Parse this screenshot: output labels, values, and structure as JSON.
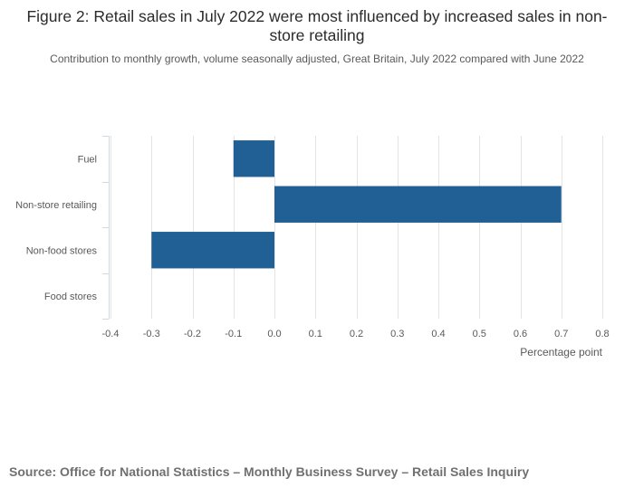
{
  "chart_data": {
    "type": "bar",
    "orientation": "horizontal",
    "title": "Figure 2: Retail sales in July 2022 were most influenced by increased sales in non-store retailing",
    "subtitle": "Contribution to monthly growth, volume seasonally adjusted, Great Britain, July 2022 compared with June 2022",
    "categories": [
      "Fuel",
      "Non-store retailing",
      "Non-food stores",
      "Food stores"
    ],
    "values": [
      -0.1,
      0.7,
      -0.3,
      0.0
    ],
    "xlabel": "Percentage point",
    "ylabel": "",
    "xlim": [
      -0.4,
      0.8
    ],
    "xticks": [
      "-0.4",
      "-0.3",
      "-0.2",
      "-0.1",
      "0.0",
      "0.1",
      "0.2",
      "0.3",
      "0.4",
      "0.5",
      "0.6",
      "0.7",
      "0.8"
    ],
    "grid": true,
    "bar_color": "#206095",
    "source": "Source: Office for National Statistics – Monthly Business Survey – Retail Sales Inquiry"
  }
}
